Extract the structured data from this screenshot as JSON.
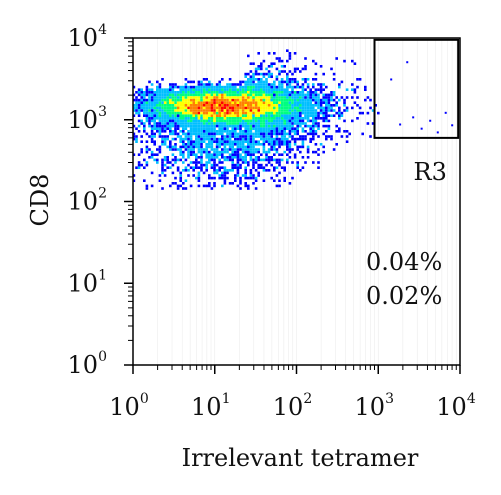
{
  "chart_data": {
    "type": "heatmap",
    "subtype": "flow-cytometry density scatter",
    "xlabel": "Irrelevant tetramer",
    "ylabel": "CD8",
    "xscale": "log",
    "yscale": "log",
    "xlim": [
      1,
      10000
    ],
    "ylim": [
      1,
      10000
    ],
    "x_ticks": [
      {
        "base": "10",
        "exp": "0",
        "value": 1
      },
      {
        "base": "10",
        "exp": "1",
        "value": 10
      },
      {
        "base": "10",
        "exp": "2",
        "value": 100
      },
      {
        "base": "10",
        "exp": "3",
        "value": 1000
      },
      {
        "base": "10",
        "exp": "4",
        "value": 10000
      }
    ],
    "y_ticks": [
      {
        "base": "10",
        "exp": "0",
        "value": 1
      },
      {
        "base": "10",
        "exp": "1",
        "value": 10
      },
      {
        "base": "10",
        "exp": "2",
        "value": 100
      },
      {
        "base": "10",
        "exp": "3",
        "value": 1000
      },
      {
        "base": "10",
        "exp": "4",
        "value": 10000
      }
    ],
    "population": {
      "description": "dense CD8+ cluster",
      "x_center": 12,
      "y_center": 1500,
      "x_range": [
        1,
        1000
      ],
      "y_range": [
        140,
        8000
      ]
    },
    "gate": {
      "name": "R3",
      "x_range": [
        900,
        9500
      ],
      "y_range": [
        600,
        9500
      ]
    },
    "annotations": [
      "0.04%",
      "0.02%"
    ],
    "colormap": [
      "#0000ff",
      "#00bfff",
      "#00ff80",
      "#ffff00",
      "#ff8000",
      "#ff0000"
    ],
    "grid": false,
    "legend": "none"
  }
}
